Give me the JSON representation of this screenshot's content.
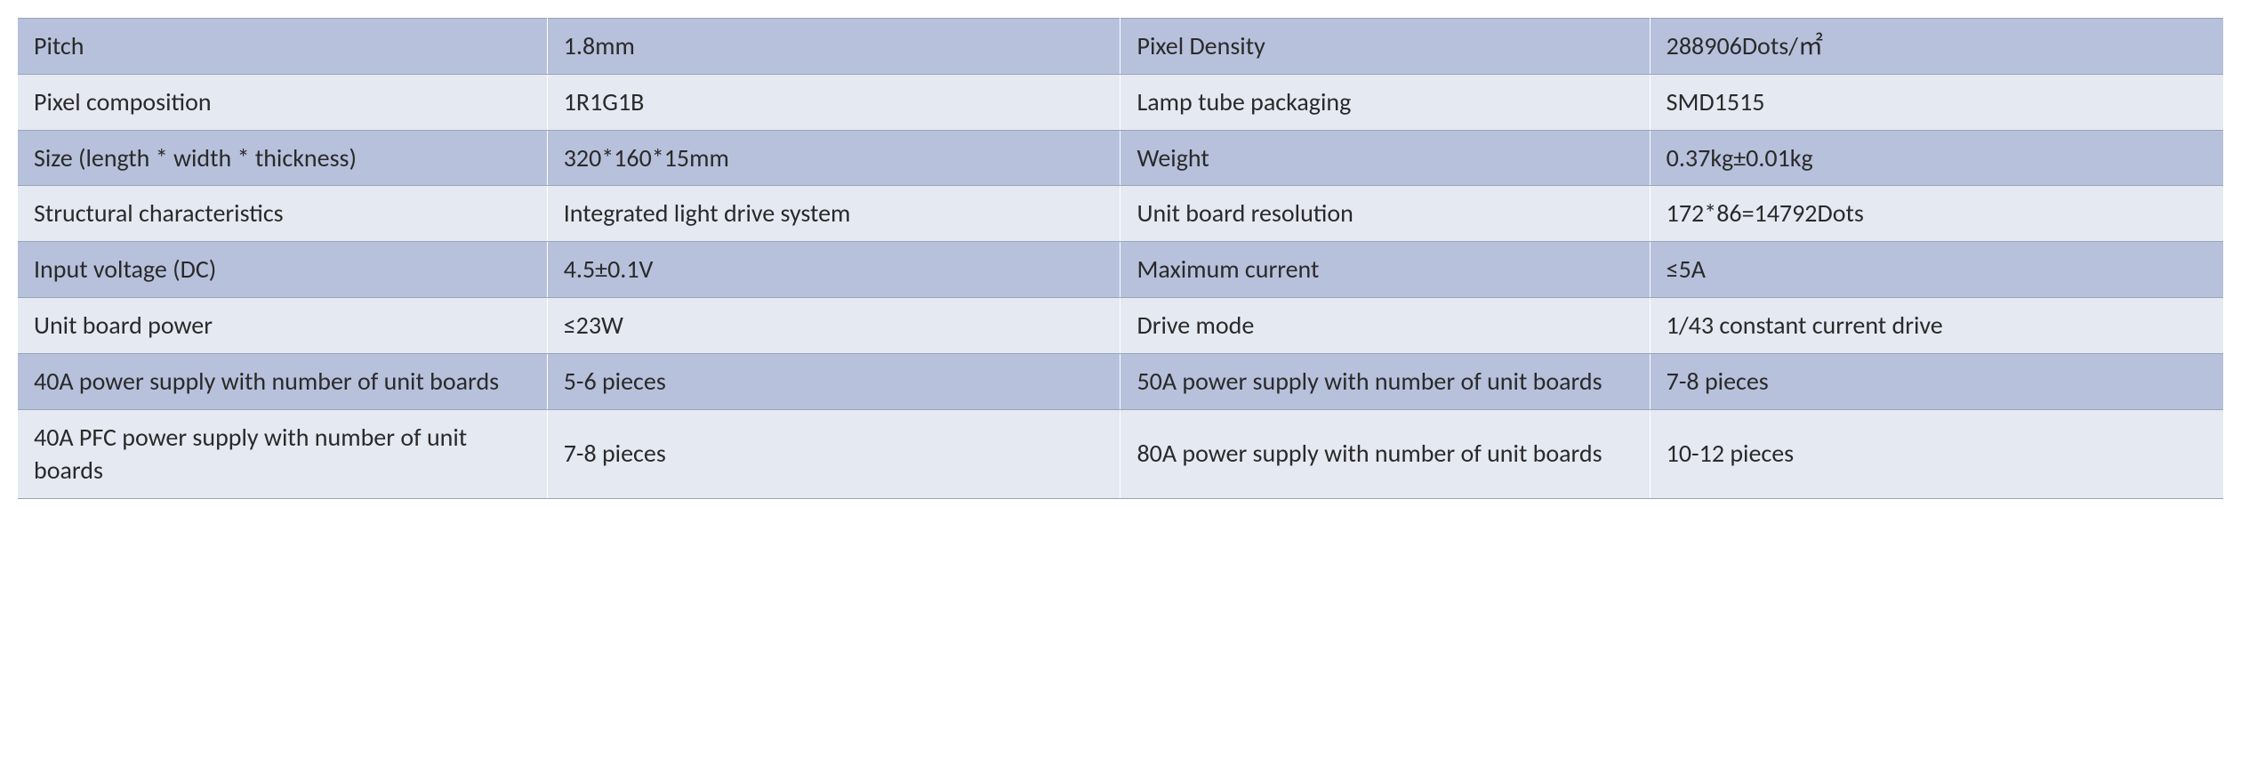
{
  "table": {
    "type": "table",
    "columns": [
      "label1",
      "value1",
      "label2",
      "value2"
    ],
    "column_widths_pct": [
      24,
      26,
      24,
      26
    ],
    "row_colors": [
      "#b7c1dc",
      "#e5e9f2"
    ],
    "border_color": "#9aa4b8",
    "text_color": "#2a2a2a",
    "cell_fontsize": 28,
    "font_family": "Calibri",
    "rows": [
      {
        "label1": "Pitch",
        "value1": "1.8mm",
        "label2": "Pixel Density",
        "value2": "288906Dots/㎡"
      },
      {
        "label1": "Pixel composition",
        "value1": "1R1G1B",
        "label2": "Lamp tube packaging",
        "value2": "SMD1515"
      },
      {
        "label1": "Size (length * width * thickness)",
        "value1": "320*160*15mm",
        "label2": "Weight",
        "value2": "0.37kg±0.01kg"
      },
      {
        "label1": "Structural characteristics",
        "value1": "Integrated light drive system",
        "label2": "Unit board resolution",
        "value2": "172*86=14792Dots"
      },
      {
        "label1": "Input voltage (DC)",
        "value1": "4.5±0.1V",
        "label2": "Maximum current",
        "value2": "≤5A"
      },
      {
        "label1": "Unit board power",
        "value1": "≤23W",
        "label2": "Drive mode",
        "value2": "1/43 constant current drive"
      },
      {
        "label1": "40A power supply with number of unit boards",
        "value1": "5-6 pieces",
        "label2": "50A power supply with number of unit boards",
        "value2": "7-8 pieces"
      },
      {
        "label1": "40A PFC power supply with number of unit boards",
        "value1": "7-8 pieces",
        "label2": "80A power supply with number of unit boards",
        "value2": "10-12 pieces"
      }
    ]
  }
}
